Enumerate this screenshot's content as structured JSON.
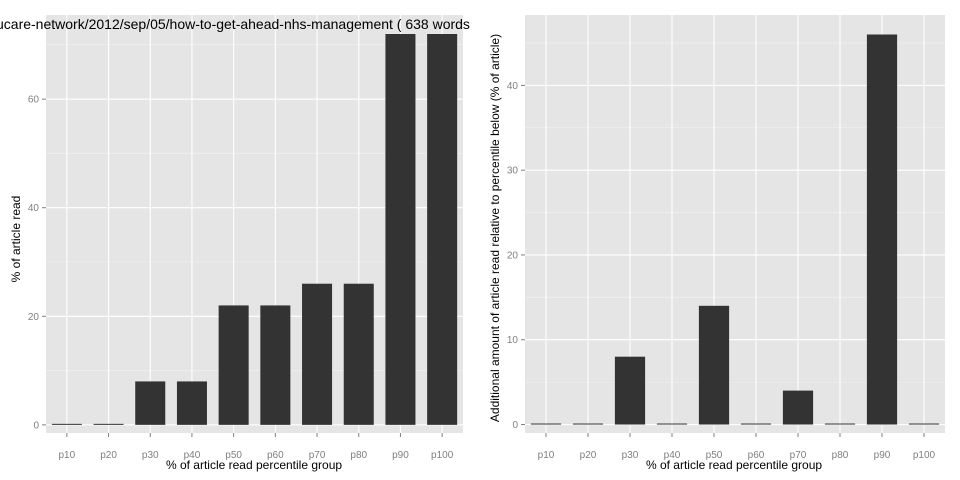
{
  "chart_data": [
    {
      "type": "bar",
      "title": "ucare-network/2012/sep/05/how-to-get-ahead-nhs-management ( 638 words",
      "xlabel": "% of article read percentile group",
      "ylabel": "% of article read",
      "categories": [
        "p10",
        "p20",
        "p30",
        "p40",
        "p50",
        "p60",
        "p70",
        "p80",
        "p90",
        "p100"
      ],
      "values": [
        0,
        0,
        8,
        8,
        22,
        22,
        26,
        26,
        72,
        72
      ],
      "ylim": [
        -1.5,
        75.5
      ],
      "yticks": [
        0,
        20,
        40,
        60
      ],
      "grid": true,
      "bar_color": "#333333",
      "panel_color": "#e5e5e5"
    },
    {
      "type": "bar",
      "title": "",
      "xlabel": "% of article read percentile group",
      "ylabel": "Additional amount of article read relative to percentile below (% of article)",
      "categories": [
        "p10",
        "p20",
        "p30",
        "p40",
        "p50",
        "p60",
        "p70",
        "p80",
        "p90",
        "p100"
      ],
      "values": [
        0,
        0,
        8,
        0,
        14,
        0,
        4,
        0,
        46,
        0
      ],
      "ylim": [
        -1,
        48.3
      ],
      "yticks": [
        0,
        10,
        20,
        30,
        40
      ],
      "grid": true,
      "bar_color": "#333333",
      "panel_color": "#e5e5e5"
    }
  ]
}
